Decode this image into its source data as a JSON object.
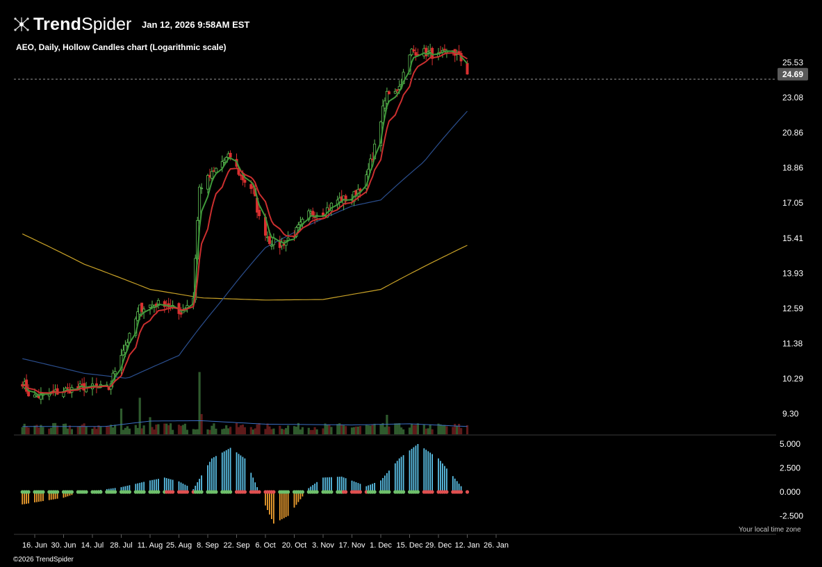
{
  "header": {
    "brand_bold": "Trend",
    "brand_light": "Spider",
    "timestamp": "Jan 12, 2026 9:58AM EST",
    "chart_caption": "AEO, Daily, Hollow Candles chart (Logarithmic scale)"
  },
  "footer": {
    "copyright": "©2026 TrendSpider",
    "local_tz_note": "Your local time zone"
  },
  "colors": {
    "background": "#000000",
    "candle_up": "#5fbf55",
    "candle_down": "#d93030",
    "ema_fast": "#3f9a3a",
    "ema_slow": "#cc2f2f",
    "sma_50": "#2b4f8f",
    "sma_200": "#c9a227",
    "volume_up": "#2f5a2d",
    "volume_down": "#5e1a1a",
    "volume_ma": "#3b6fc4",
    "osc_pos_bar": "#5bc0e6",
    "osc_neg_bar": "#f0a030",
    "osc_dot_up": "#6fc06b",
    "osc_dot_down": "#e05050",
    "price_label_bg": "#5a5a5a"
  },
  "chart_data": {
    "type": "candlestick",
    "title": "AEO, Daily, Hollow Candles chart (Logarithmic scale)",
    "y_scale": "log",
    "y_ticks": [
      "25.53",
      "23.08",
      "20.86",
      "18.86",
      "17.05",
      "15.41",
      "13.93",
      "12.59",
      "11.38",
      "10.29",
      "9.30"
    ],
    "last_price": "24.69",
    "x_ticks": [
      "16. Jun",
      "30. Jun",
      "14. Jul",
      "28. Jul",
      "11. Aug",
      "25. Aug",
      "8. Sep",
      "22. Sep",
      "6. Oct",
      "20. Oct",
      "3. Nov",
      "17. Nov",
      "1. Dec",
      "15. Dec",
      "29. Dec",
      "12. Jan",
      "26. Jan"
    ],
    "close_path": [
      {
        "date": "2025-06-10",
        "close": 10.2
      },
      {
        "date": "2025-06-14",
        "close": 9.75
      },
      {
        "date": "2025-06-20",
        "close": 9.8
      },
      {
        "date": "2025-06-30",
        "close": 9.95
      },
      {
        "date": "2025-07-10",
        "close": 10.05
      },
      {
        "date": "2025-07-22",
        "close": 10.0
      },
      {
        "date": "2025-07-28",
        "close": 11.1
      },
      {
        "date": "2025-08-01",
        "close": 11.6
      },
      {
        "date": "2025-08-06",
        "close": 12.6
      },
      {
        "date": "2025-08-11",
        "close": 12.7
      },
      {
        "date": "2025-08-18",
        "close": 12.8
      },
      {
        "date": "2025-08-25",
        "close": 12.4
      },
      {
        "date": "2025-09-01",
        "close": 13.0
      },
      {
        "date": "2025-09-04",
        "close": 17.8
      },
      {
        "date": "2025-09-10",
        "close": 18.5
      },
      {
        "date": "2025-09-15",
        "close": 19.2
      },
      {
        "date": "2025-09-19",
        "close": 19.5
      },
      {
        "date": "2025-09-24",
        "close": 18.4
      },
      {
        "date": "2025-09-30",
        "close": 17.7
      },
      {
        "date": "2025-10-03",
        "close": 16.3
      },
      {
        "date": "2025-10-08",
        "close": 15.3
      },
      {
        "date": "2025-10-13",
        "close": 15.1
      },
      {
        "date": "2025-10-20",
        "close": 15.6
      },
      {
        "date": "2025-10-27",
        "close": 16.5
      },
      {
        "date": "2025-11-03",
        "close": 16.6
      },
      {
        "date": "2025-11-10",
        "close": 17.2
      },
      {
        "date": "2025-11-17",
        "close": 17.3
      },
      {
        "date": "2025-11-24",
        "close": 18.3
      },
      {
        "date": "2025-11-28",
        "close": 20.0
      },
      {
        "date": "2025-12-04",
        "close": 23.4
      },
      {
        "date": "2025-12-10",
        "close": 23.8
      },
      {
        "date": "2025-12-16",
        "close": 26.4
      },
      {
        "date": "2025-12-22",
        "close": 26.3
      },
      {
        "date": "2025-12-29",
        "close": 26.0
      },
      {
        "date": "2026-01-05",
        "close": 26.4
      },
      {
        "date": "2026-01-09",
        "close": 25.7
      },
      {
        "date": "2026-01-12",
        "close": 24.69
      }
    ],
    "sma_200_path": [
      {
        "date": "2025-06-10",
        "value": 15.6
      },
      {
        "date": "2025-07-10",
        "value": 14.3
      },
      {
        "date": "2025-08-11",
        "value": 13.3
      },
      {
        "date": "2025-09-05",
        "value": 12.98
      },
      {
        "date": "2025-10-06",
        "value": 12.9
      },
      {
        "date": "2025-11-03",
        "value": 12.92
      },
      {
        "date": "2025-12-01",
        "value": 13.3
      },
      {
        "date": "2025-12-22",
        "value": 14.2
      },
      {
        "date": "2026-01-12",
        "value": 15.1
      }
    ],
    "sma_50_path": [
      {
        "date": "2025-06-10",
        "value": 10.9
      },
      {
        "date": "2025-07-10",
        "value": 10.45
      },
      {
        "date": "2025-07-31",
        "value": 10.3
      },
      {
        "date": "2025-08-25",
        "value": 11.0
      },
      {
        "date": "2025-09-15",
        "value": 12.9
      },
      {
        "date": "2025-10-06",
        "value": 15.0
      },
      {
        "date": "2025-10-27",
        "value": 16.0
      },
      {
        "date": "2025-11-17",
        "value": 16.9
      },
      {
        "date": "2025-12-01",
        "value": 17.2
      },
      {
        "date": "2025-12-22",
        "value": 19.2
      },
      {
        "date": "2026-01-12",
        "value": 22.2
      }
    ],
    "oscillator": {
      "y_ticks": [
        "5.000",
        "2.500",
        "0.000",
        "-2.500"
      ],
      "path": [
        {
          "date": "2025-06-10",
          "value": -1.3
        },
        {
          "date": "2025-06-30",
          "value": -0.6
        },
        {
          "date": "2025-07-07",
          "value": -0.1
        },
        {
          "date": "2025-07-28",
          "value": 0.5
        },
        {
          "date": "2025-08-11",
          "value": 1.2
        },
        {
          "date": "2025-08-18",
          "value": 1.5
        },
        {
          "date": "2025-08-25",
          "value": 1.1
        },
        {
          "date": "2025-09-01",
          "value": 0.3
        },
        {
          "date": "2025-09-10",
          "value": 3.5
        },
        {
          "date": "2025-09-19",
          "value": 4.6
        },
        {
          "date": "2025-09-26",
          "value": 3.5
        },
        {
          "date": "2025-10-03",
          "value": 0.0
        },
        {
          "date": "2025-10-10",
          "value": -3.3
        },
        {
          "date": "2025-10-17",
          "value": -2.5
        },
        {
          "date": "2025-10-27",
          "value": 0.4
        },
        {
          "date": "2025-11-03",
          "value": 1.5
        },
        {
          "date": "2025-11-12",
          "value": 1.6
        },
        {
          "date": "2025-11-24",
          "value": 0.6
        },
        {
          "date": "2025-12-01",
          "value": 1.2
        },
        {
          "date": "2025-12-10",
          "value": 3.5
        },
        {
          "date": "2025-12-19",
          "value": 5.0
        },
        {
          "date": "2025-12-29",
          "value": 3.5
        },
        {
          "date": "2026-01-09",
          "value": 0.6
        },
        {
          "date": "2026-01-12",
          "value": 0.1
        }
      ]
    },
    "volume": {
      "ma_path": [
        {
          "date": "2025-06-10",
          "value": 1.0
        },
        {
          "date": "2025-07-20",
          "value": 1.0
        },
        {
          "date": "2025-08-11",
          "value": 1.7
        },
        {
          "date": "2025-09-05",
          "value": 1.75
        },
        {
          "date": "2025-10-06",
          "value": 1.3
        },
        {
          "date": "2025-11-17",
          "value": 1.2
        },
        {
          "date": "2025-12-15",
          "value": 1.35
        },
        {
          "date": "2026-01-12",
          "value": 1.0
        }
      ],
      "spikes": [
        {
          "date": "2025-07-28",
          "value": 3.3
        },
        {
          "date": "2025-08-06",
          "value": 4.7
        },
        {
          "date": "2025-08-11",
          "value": 2.2
        },
        {
          "date": "2025-09-04",
          "value": 8.0
        },
        {
          "date": "2025-09-05",
          "value": 2.6
        },
        {
          "date": "2025-12-04",
          "value": 2.5
        },
        {
          "date": "2025-12-08",
          "value": 1.4
        }
      ]
    }
  }
}
